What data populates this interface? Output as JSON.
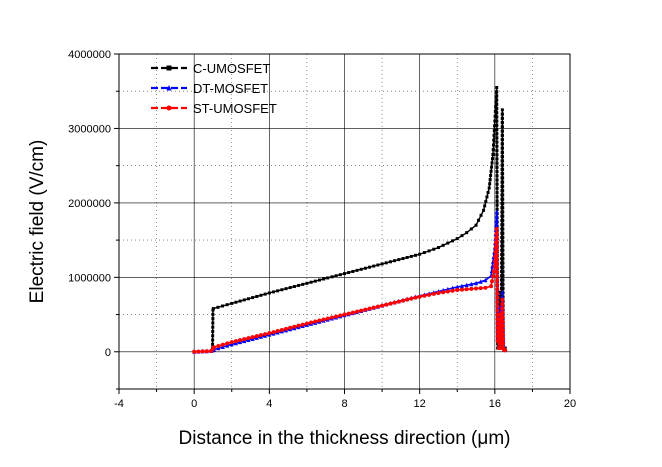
{
  "chart_data": {
    "type": "line",
    "title": "",
    "xlabel": "Distance in the thickness direction (μm)",
    "ylabel": "Electric field (V/cm)",
    "xlim": [
      -4,
      20
    ],
    "ylim": [
      -500000,
      4000000
    ],
    "xticks": [
      -4,
      0,
      4,
      8,
      12,
      16,
      20
    ],
    "xtick_labels": [
      "-4",
      "0",
      "4",
      "8",
      "12",
      "16",
      "20"
    ],
    "yticks": [
      0,
      1000000,
      2000000,
      3000000,
      4000000
    ],
    "ytick_labels": [
      "0",
      "1000000",
      "2000000",
      "3000000",
      "4000000"
    ],
    "grid": true,
    "legend_position": "top-left",
    "series": [
      {
        "name": "C-UMOSFET",
        "color": "#000000",
        "marker": "square",
        "x": [
          0,
          0.9,
          0.98,
          1.0,
          1.02,
          2,
          4,
          6,
          8,
          10,
          12,
          13,
          14,
          14.5,
          15,
          15.4,
          15.7,
          15.9,
          16.0,
          16.1,
          16.15,
          16.22,
          16.28,
          16.34,
          16.4,
          16.45,
          16.5,
          16.55
        ],
        "y": [
          0,
          10000,
          100000,
          560000,
          580000,
          650000,
          790000,
          920000,
          1050000,
          1180000,
          1310000,
          1400000,
          1520000,
          1600000,
          1700000,
          1900000,
          2200000,
          2650000,
          3100000,
          3550000,
          50000,
          50000,
          800000,
          50000,
          3250000,
          50000,
          50000,
          50000
        ]
      },
      {
        "name": "DT-MOSFET",
        "color": "#0000ff",
        "marker": "triangle",
        "x": [
          0,
          0.9,
          1.0,
          1.05,
          2,
          4,
          6,
          8,
          10,
          12,
          13,
          14,
          15,
          15.5,
          15.8,
          16.0,
          16.1,
          16.15,
          16.22,
          16.28,
          16.34,
          16.4,
          16.45,
          16.5,
          16.55
        ],
        "y": [
          0,
          10000,
          20000,
          30000,
          100000,
          230000,
          360000,
          490000,
          620000,
          750000,
          810000,
          870000,
          920000,
          960000,
          1020000,
          1400000,
          1880000,
          200000,
          100000,
          600000,
          100000,
          800000,
          100000,
          30000,
          30000
        ]
      },
      {
        "name": "ST-UMOSFET",
        "color": "#ff0000",
        "marker": "circle",
        "x": [
          0,
          0.9,
          1.0,
          1.05,
          2,
          4,
          6,
          8,
          10,
          12,
          13,
          14,
          15,
          15.5,
          15.8,
          16.0,
          16.1,
          16.15,
          16.22,
          16.28,
          16.34,
          16.4,
          16.45,
          16.5,
          16.55
        ],
        "y": [
          0,
          10000,
          40000,
          60000,
          130000,
          250000,
          380000,
          500000,
          620000,
          740000,
          790000,
          830000,
          850000,
          860000,
          880000,
          1150000,
          1650000,
          150000,
          50000,
          500000,
          50000,
          700000,
          50000,
          20000,
          20000
        ]
      }
    ]
  }
}
